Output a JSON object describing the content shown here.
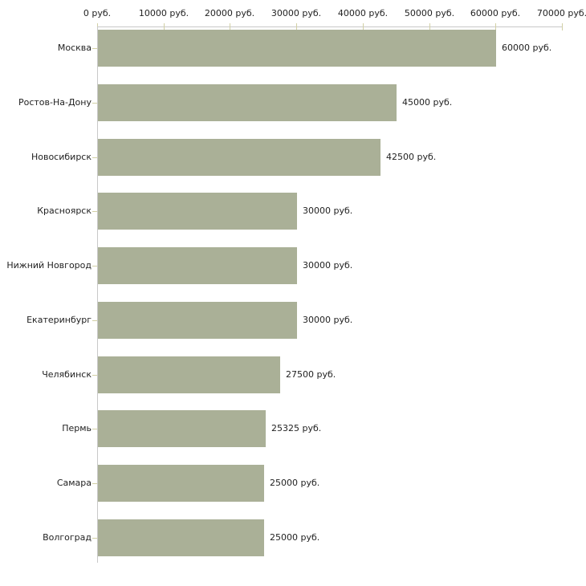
{
  "chart_data": {
    "type": "bar",
    "orientation": "horizontal",
    "title": "",
    "xlabel": "",
    "ylabel": "",
    "unit_suffix": " руб.",
    "categories": [
      "Москва",
      "Ростов-На-Дону",
      "Новосибирск",
      "Красноярск",
      "Нижний Новгород",
      "Екатеринбург",
      "Челябинск",
      "Пермь",
      "Самара",
      "Волгоград"
    ],
    "values": [
      60000,
      45000,
      42500,
      30000,
      30000,
      30000,
      27500,
      25325,
      25000,
      25000
    ],
    "value_labels": [
      "60000 руб.",
      "45000 руб.",
      "42500 руб.",
      "30000 руб.",
      "30000 руб.",
      "30000 руб.",
      "27500 руб.",
      "25325 руб.",
      "25000 руб.",
      "25000 руб."
    ],
    "x_axis": {
      "position": "top",
      "xlim": [
        0,
        70000
      ],
      "ticks": [
        0,
        10000,
        20000,
        30000,
        40000,
        50000,
        60000,
        70000
      ],
      "tick_labels": [
        "0 руб.",
        "10000 руб.",
        "20000 руб.",
        "30000 руб.",
        "40000 руб.",
        "50000 руб.",
        "60000 руб.",
        "70000 руб."
      ]
    },
    "grid": false,
    "legend": false,
    "colors": {
      "bar_fill": "#aab097",
      "axis_line": "#c8c8c8",
      "tick_mark": "#d2d0a5",
      "text": "#222222",
      "background": "#ffffff"
    }
  }
}
